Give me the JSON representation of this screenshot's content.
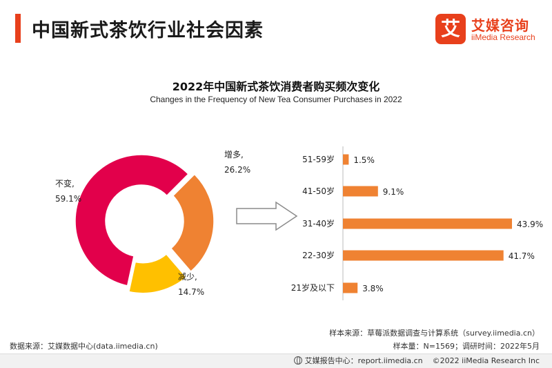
{
  "page_title": "中国新式茶饮行业社会因素",
  "logo": {
    "mark": "艾",
    "name_cn": "艾媒咨询",
    "name_en": "iiMedia Research"
  },
  "colors": {
    "accent": "#e8401c",
    "increase": "#ef8232",
    "unchanged": "#e2004b",
    "decrease": "#ffc000",
    "bar": "#ef8232"
  },
  "chart_data": [
    {
      "type": "pie",
      "title": "2022年中国新式茶饮消费者购买频次变化",
      "subtitle": "Changes in the Frequency of New Tea Consumer Purchases in 2022",
      "slices": [
        {
          "name": "增多,",
          "value": 26.2,
          "label": "26.2%"
        },
        {
          "name": "减少,",
          "value": 14.7,
          "label": "14.7%"
        },
        {
          "name": "不变,",
          "value": 59.1,
          "label": "59.1%"
        }
      ]
    },
    {
      "type": "bar",
      "orientation": "horizontal",
      "categories": [
        "51-59岁",
        "41-50岁",
        "31-40岁",
        "22-30岁",
        "21岁及以下"
      ],
      "values": [
        1.5,
        9.1,
        43.9,
        41.7,
        3.8
      ],
      "labels": [
        "1.5%",
        "9.1%",
        "43.9%",
        "41.7%",
        "3.8%"
      ]
    }
  ],
  "footer": {
    "source_left": "数据来源：艾媒数据中心(data.iimedia.cn)",
    "sample_source": "样本来源：草莓派数据调查与计算系统（survey.iimedia.cn）",
    "sample_info": "样本量：N=1569；调研时间：2022年5月",
    "report_center": "艾媒报告中心：report.iimedia.cn",
    "copyright": "©2022  iiMedia Research  Inc"
  }
}
